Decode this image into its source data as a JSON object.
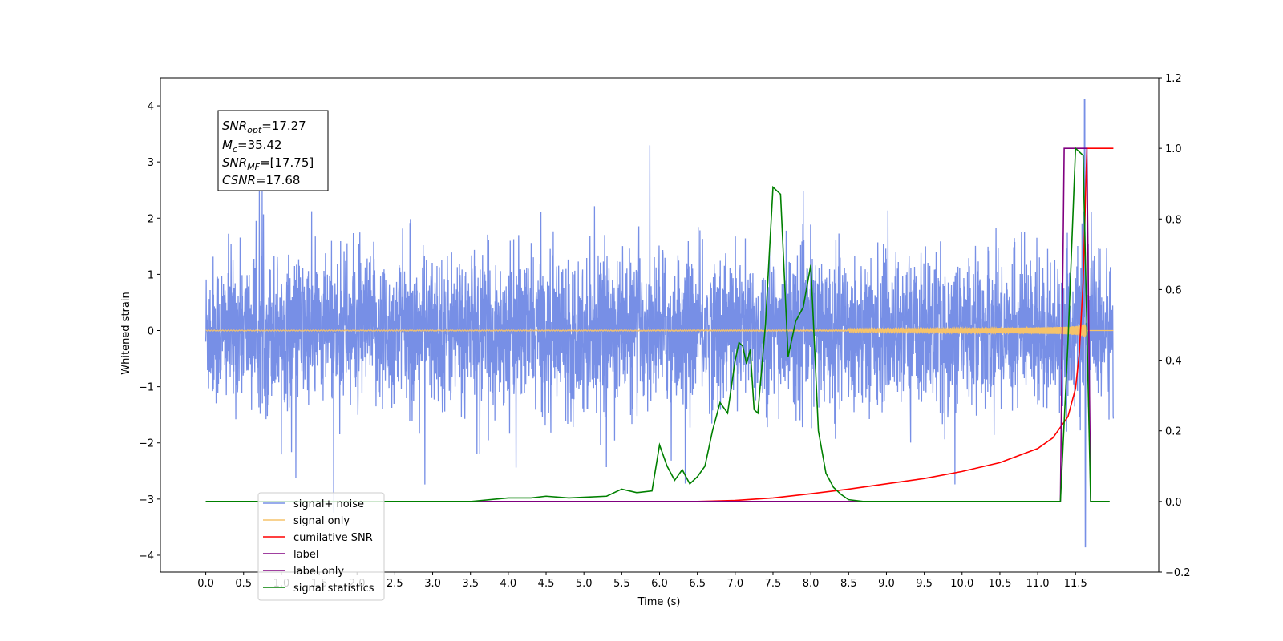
{
  "chart_data": {
    "type": "line",
    "title": "",
    "xlabel": "Time (s)",
    "ylabel": "Whitened strain",
    "y2label": "",
    "xlim": [
      -0.6,
      12.6
    ],
    "ylim": [
      -4.3,
      4.5
    ],
    "y2lim": [
      -0.2,
      1.2
    ],
    "xticks": [
      "0.0",
      "0.5",
      "1.0",
      "1.5",
      "2.0",
      "2.5",
      "3.0",
      "3.5",
      "4.0",
      "4.5",
      "5.0",
      "5.5",
      "6.0",
      "6.5",
      "7.0",
      "7.5",
      "8.0",
      "8.5",
      "9.0",
      "9.5",
      "10.0",
      "10.5",
      "11.0",
      "11.5"
    ],
    "yticks": [
      "4",
      "3",
      "2",
      "1",
      "0",
      "−1",
      "−2",
      "−3",
      "−4"
    ],
    "yticks_values": [
      4,
      3,
      2,
      1,
      0,
      -1,
      -2,
      -3,
      -4
    ],
    "y2ticks": [
      "1.2",
      "1.0",
      "0.8",
      "0.6",
      "0.4",
      "0.2",
      "0.0",
      "−0.2"
    ],
    "y2ticks_values": [
      1.2,
      1.0,
      0.8,
      0.6,
      0.4,
      0.2,
      0.0,
      -0.2
    ],
    "grid": false,
    "legend_placement": "lower-left",
    "annotation": {
      "snr_opt": {
        "main": "SNR",
        "sub": "opt",
        "value": "=17.27"
      },
      "mc": {
        "main": "M",
        "sub": "c",
        "value": "=35.42"
      },
      "snr_mf": {
        "main": "SNR",
        "sub": "MF",
        "value": "=[17.75]"
      },
      "csnr": {
        "main": "CSNR",
        "value": "=17.68"
      }
    },
    "series": [
      {
        "name": "signal+ noise",
        "color": "#778fe6",
        "axis": "left",
        "style": "noise",
        "x_range": [
          0.0,
          12.0
        ],
        "amplitude_std": 0.65,
        "peak": {
          "x": 11.62,
          "y": 4.12,
          "y_min": -3.85
        }
      },
      {
        "name": "signal only",
        "color": "#f6c36b",
        "axis": "left",
        "style": "chirp",
        "t_merge": 11.65,
        "x_range": [
          0.0,
          11.7
        ],
        "amplitude_max": 3.2
      },
      {
        "name": "cumilative SNR",
        "color": "#ff0000",
        "axis": "right",
        "x": [
          0.0,
          6.0,
          6.5,
          7.0,
          7.5,
          8.0,
          8.5,
          9.0,
          9.5,
          10.0,
          10.5,
          11.0,
          11.2,
          11.4,
          11.5,
          11.55,
          11.6,
          11.65,
          12.0
        ],
        "values": [
          0.0,
          0.0,
          0.0,
          0.003,
          0.01,
          0.022,
          0.035,
          0.05,
          0.065,
          0.085,
          0.11,
          0.15,
          0.18,
          0.24,
          0.32,
          0.42,
          0.62,
          1.0,
          1.0
        ]
      },
      {
        "name": "label",
        "color": "#800080",
        "axis": "right",
        "x": [
          0.0,
          11.3,
          11.35,
          11.65,
          11.7,
          11.95
        ],
        "values": [
          0.0,
          0.0,
          1.0,
          1.0,
          0.0,
          0.0
        ]
      },
      {
        "name": "label only",
        "color": "#800080",
        "axis": "right",
        "hidden_line": true
      },
      {
        "name": "signal statistics",
        "color": "#008000",
        "axis": "right",
        "x": [
          0.0,
          3.5,
          4.0,
          4.3,
          4.5,
          4.8,
          5.0,
          5.3,
          5.5,
          5.7,
          5.9,
          6.0,
          6.1,
          6.2,
          6.3,
          6.4,
          6.5,
          6.6,
          6.7,
          6.8,
          6.9,
          7.0,
          7.05,
          7.1,
          7.15,
          7.2,
          7.25,
          7.3,
          7.4,
          7.5,
          7.6,
          7.7,
          7.8,
          7.9,
          8.0,
          8.1,
          8.2,
          8.3,
          8.4,
          8.5,
          8.7,
          9.0,
          11.0,
          11.3,
          11.4,
          11.5,
          11.6,
          11.7,
          11.95
        ],
        "values": [
          0.0,
          0.0,
          0.01,
          0.01,
          0.015,
          0.01,
          0.012,
          0.015,
          0.035,
          0.025,
          0.03,
          0.16,
          0.1,
          0.06,
          0.09,
          0.05,
          0.07,
          0.1,
          0.2,
          0.28,
          0.25,
          0.4,
          0.45,
          0.44,
          0.39,
          0.43,
          0.26,
          0.25,
          0.5,
          0.89,
          0.87,
          0.41,
          0.51,
          0.55,
          0.67,
          0.2,
          0.08,
          0.04,
          0.02,
          0.005,
          0.0,
          0.0,
          0.0,
          0.0,
          0.45,
          1.0,
          0.98,
          0.0,
          0.0
        ]
      }
    ]
  }
}
